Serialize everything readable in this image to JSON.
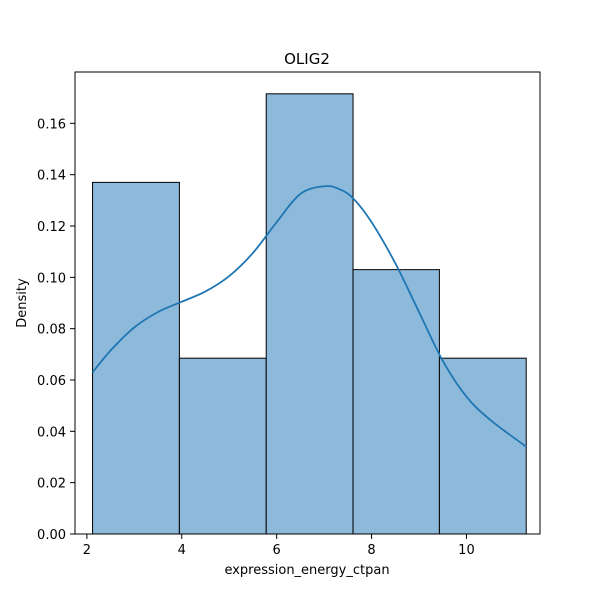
{
  "chart_data": {
    "type": "bar",
    "title": "OLIG2",
    "xlabel": "expression_energy_ctpan",
    "ylabel": "Density",
    "xlim": [
      1.75,
      11.55
    ],
    "ylim": [
      0,
      0.18
    ],
    "x_ticks": [
      2,
      4,
      6,
      8,
      10
    ],
    "y_ticks": [
      0.0,
      0.02,
      0.04,
      0.06,
      0.08,
      0.1,
      0.12,
      0.14,
      0.16
    ],
    "x_tick_labels": [
      "2",
      "4",
      "6",
      "8",
      "10"
    ],
    "y_tick_labels": [
      "0.00",
      "0.02",
      "0.04",
      "0.06",
      "0.08",
      "0.10",
      "0.12",
      "0.14",
      "0.16"
    ],
    "bins": [
      {
        "x0": 2.12,
        "x1": 3.95,
        "density": 0.137
      },
      {
        "x0": 3.95,
        "x1": 5.78,
        "density": 0.0685
      },
      {
        "x0": 5.78,
        "x1": 7.61,
        "density": 0.1715
      },
      {
        "x0": 7.61,
        "x1": 9.43,
        "density": 0.103
      },
      {
        "x0": 9.43,
        "x1": 11.26,
        "density": 0.0685
      }
    ],
    "kde": {
      "x": [
        2.12,
        2.5,
        3.0,
        3.5,
        4.0,
        4.5,
        5.0,
        5.5,
        6.0,
        6.5,
        7.0,
        7.3,
        7.6,
        8.0,
        8.5,
        9.0,
        9.5,
        10.0,
        10.5,
        11.26
      ],
      "y": [
        0.063,
        0.0715,
        0.0805,
        0.0865,
        0.0905,
        0.0945,
        0.1005,
        0.1095,
        0.1215,
        0.1325,
        0.1355,
        0.1345,
        0.131,
        0.1215,
        0.1055,
        0.0865,
        0.0675,
        0.0535,
        0.0445,
        0.034
      ]
    },
    "bar_color": "#8db9da",
    "kde_color": "#1f77b4",
    "grid": false,
    "legend": "none"
  }
}
